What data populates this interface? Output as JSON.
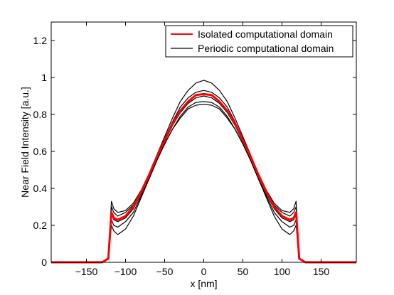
{
  "chart_data": {
    "type": "line",
    "xlabel": "x [nm]",
    "ylabel": "Near Field Intensity [a.u.]",
    "xlim": [
      -195,
      195
    ],
    "ylim": [
      0,
      1.3
    ],
    "xticks": [
      -150,
      -100,
      -50,
      0,
      50,
      100,
      150
    ],
    "xtick_labels": [
      "−150",
      "−100",
      "−50",
      "0",
      "50",
      "100",
      "150"
    ],
    "yticks": [
      0,
      0.2,
      0.4,
      0.6,
      0.8,
      1.0,
      1.2
    ],
    "ytick_labels": [
      "0",
      "0.2",
      "0.4",
      "0.6",
      "0.8",
      "1",
      "1.2"
    ],
    "grid": false,
    "legend_position": "top-right",
    "legend": [
      {
        "label": "Isolated computational domain",
        "color": "#ff0000"
      },
      {
        "label": "Periodic computational domain",
        "color": "#000000"
      }
    ],
    "series": [
      {
        "name": "Isolated computational domain",
        "color": "#ff0000",
        "x": [
          -195,
          -130,
          -122,
          -118,
          -115,
          -110,
          -100,
          -90,
          -80,
          -70,
          -60,
          -50,
          -40,
          -30,
          -20,
          -10,
          0,
          10,
          20,
          30,
          40,
          50,
          60,
          70,
          80,
          90,
          100,
          110,
          115,
          118,
          122,
          130,
          195
        ],
        "y": [
          0,
          0,
          0.02,
          0.27,
          0.24,
          0.23,
          0.25,
          0.3,
          0.38,
          0.47,
          0.57,
          0.66,
          0.75,
          0.82,
          0.87,
          0.905,
          0.91,
          0.905,
          0.87,
          0.82,
          0.75,
          0.66,
          0.57,
          0.47,
          0.38,
          0.3,
          0.25,
          0.23,
          0.24,
          0.27,
          0.02,
          0,
          0
        ]
      },
      {
        "name": "Periodic computational domain",
        "color": "#000000",
        "x": [
          -195,
          -130,
          -122,
          -118,
          -115,
          -110,
          -100,
          -90,
          -80,
          -70,
          -60,
          -50,
          -40,
          -30,
          -20,
          -10,
          0,
          10,
          20,
          30,
          40,
          50,
          60,
          70,
          80,
          90,
          100,
          110,
          115,
          118,
          122,
          130,
          195
        ],
        "y": [
          0,
          0,
          0.02,
          0.33,
          0.29,
          0.27,
          0.28,
          0.32,
          0.39,
          0.48,
          0.58,
          0.68,
          0.78,
          0.87,
          0.93,
          0.97,
          0.985,
          0.97,
          0.93,
          0.87,
          0.78,
          0.68,
          0.58,
          0.48,
          0.39,
          0.32,
          0.28,
          0.27,
          0.29,
          0.33,
          0.02,
          0,
          0
        ]
      },
      {
        "name": "Periodic computational domain",
        "color": "#000000",
        "x": [
          -195,
          -130,
          -122,
          -118,
          -115,
          -110,
          -100,
          -90,
          -80,
          -70,
          -60,
          -50,
          -40,
          -30,
          -20,
          -10,
          0,
          10,
          20,
          30,
          40,
          50,
          60,
          70,
          80,
          90,
          100,
          110,
          115,
          118,
          122,
          130,
          195
        ],
        "y": [
          0,
          0,
          0.02,
          0.3,
          0.27,
          0.25,
          0.27,
          0.31,
          0.38,
          0.47,
          0.57,
          0.67,
          0.76,
          0.84,
          0.89,
          0.92,
          0.93,
          0.92,
          0.89,
          0.84,
          0.76,
          0.67,
          0.57,
          0.47,
          0.38,
          0.31,
          0.27,
          0.25,
          0.27,
          0.3,
          0.02,
          0,
          0
        ]
      },
      {
        "name": "Periodic computational domain",
        "color": "#000000",
        "x": [
          -195,
          -130,
          -122,
          -118,
          -115,
          -110,
          -100,
          -90,
          -80,
          -70,
          -60,
          -50,
          -40,
          -30,
          -20,
          -10,
          0,
          10,
          20,
          30,
          40,
          50,
          60,
          70,
          80,
          90,
          100,
          110,
          115,
          118,
          122,
          130,
          195
        ],
        "y": [
          0,
          0,
          0.02,
          0.26,
          0.23,
          0.22,
          0.24,
          0.29,
          0.37,
          0.46,
          0.56,
          0.65,
          0.74,
          0.81,
          0.86,
          0.89,
          0.9,
          0.89,
          0.86,
          0.81,
          0.74,
          0.65,
          0.56,
          0.46,
          0.37,
          0.29,
          0.24,
          0.22,
          0.23,
          0.26,
          0.02,
          0,
          0
        ]
      },
      {
        "name": "Periodic computational domain",
        "color": "#000000",
        "x": [
          -195,
          -130,
          -122,
          -118,
          -115,
          -110,
          -100,
          -90,
          -80,
          -70,
          -60,
          -50,
          -40,
          -30,
          -20,
          -10,
          0,
          10,
          20,
          30,
          40,
          50,
          60,
          70,
          80,
          90,
          100,
          110,
          115,
          118,
          122,
          130,
          195
        ],
        "y": [
          0,
          0,
          0.02,
          0.23,
          0.2,
          0.19,
          0.22,
          0.27,
          0.36,
          0.45,
          0.55,
          0.64,
          0.72,
          0.79,
          0.84,
          0.865,
          0.87,
          0.865,
          0.84,
          0.79,
          0.72,
          0.64,
          0.55,
          0.45,
          0.36,
          0.27,
          0.22,
          0.19,
          0.2,
          0.23,
          0.02,
          0,
          0
        ]
      },
      {
        "name": "Periodic computational domain",
        "color": "#000000",
        "x": [
          -195,
          -130,
          -122,
          -118,
          -115,
          -110,
          -100,
          -90,
          -80,
          -70,
          -60,
          -50,
          -40,
          -30,
          -20,
          -10,
          0,
          10,
          20,
          30,
          40,
          50,
          60,
          70,
          80,
          90,
          100,
          110,
          115,
          118,
          122,
          130,
          195
        ],
        "y": [
          0,
          0,
          0.02,
          0.2,
          0.17,
          0.15,
          0.18,
          0.25,
          0.35,
          0.45,
          0.55,
          0.64,
          0.72,
          0.78,
          0.83,
          0.85,
          0.855,
          0.85,
          0.83,
          0.78,
          0.72,
          0.64,
          0.55,
          0.45,
          0.35,
          0.25,
          0.18,
          0.15,
          0.17,
          0.2,
          0.02,
          0,
          0
        ]
      }
    ]
  }
}
